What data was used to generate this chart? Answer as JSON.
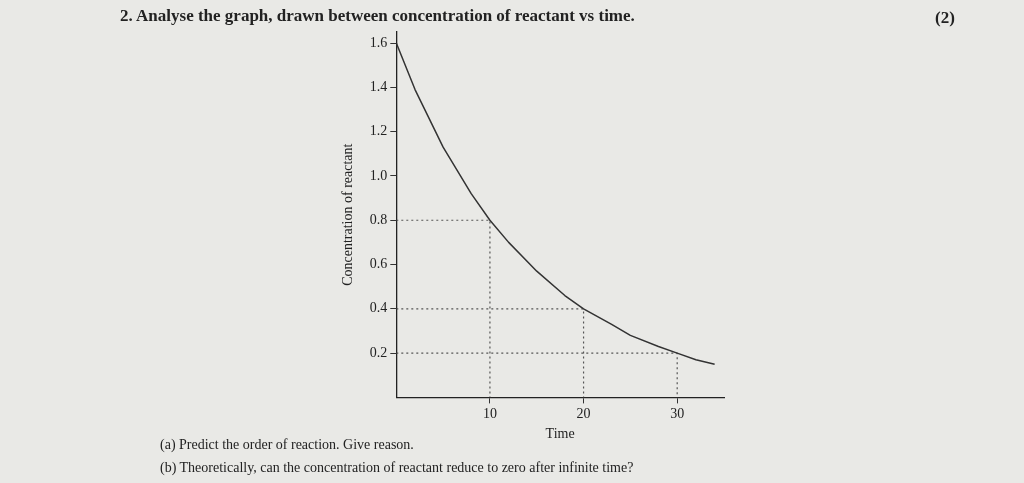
{
  "chart_data": {
    "type": "line",
    "title": "2. Analyse the graph, drawn between concentration of reactant vs time.",
    "xlabel": "Time",
    "ylabel": "Concentration of reactant",
    "xlim": [
      0,
      35
    ],
    "xticks": [
      10,
      20,
      30
    ],
    "ylim": [
      0,
      1.65
    ],
    "yticks": [
      0.2,
      0.4,
      0.6,
      0.8,
      {
        "value": 1,
        "label": "1.0"
      },
      1.2,
      1.4,
      1.6
    ],
    "series": [
      {
        "color": "#333333",
        "x": [
          0,
          2,
          5,
          8,
          10,
          12,
          15,
          18,
          20,
          23,
          25,
          28,
          30,
          32,
          34
        ],
        "values": [
          1.6,
          1.39,
          1.13,
          0.92,
          0.8,
          0.7,
          0.57,
          0.46,
          0.4,
          0.33,
          0.28,
          0.23,
          0.2,
          0.17,
          0.15
        ],
        "line_style": "solid"
      },
      {
        "color": "#555555",
        "x": [
          0,
          10,
          10
        ],
        "values": [
          0.8,
          0.8,
          0
        ],
        "line_style": "dotted"
      },
      {
        "color": "#555555",
        "x": [
          0,
          20,
          20
        ],
        "values": [
          0.4,
          0.4,
          0
        ],
        "line_style": "dotted"
      },
      {
        "color": "#555555",
        "x": [
          0,
          30,
          30
        ],
        "values": [
          0.2,
          0.2,
          0
        ],
        "line_style": "dotted"
      }
    ],
    "marker": "none",
    "grid": false,
    "legend": false,
    "annotations": [
      "(2)",
      "(a) Predict the order of reaction. Give reason.",
      "(b) Theoretically, can the concentration of reactant reduce to zero after infinite time?"
    ]
  }
}
